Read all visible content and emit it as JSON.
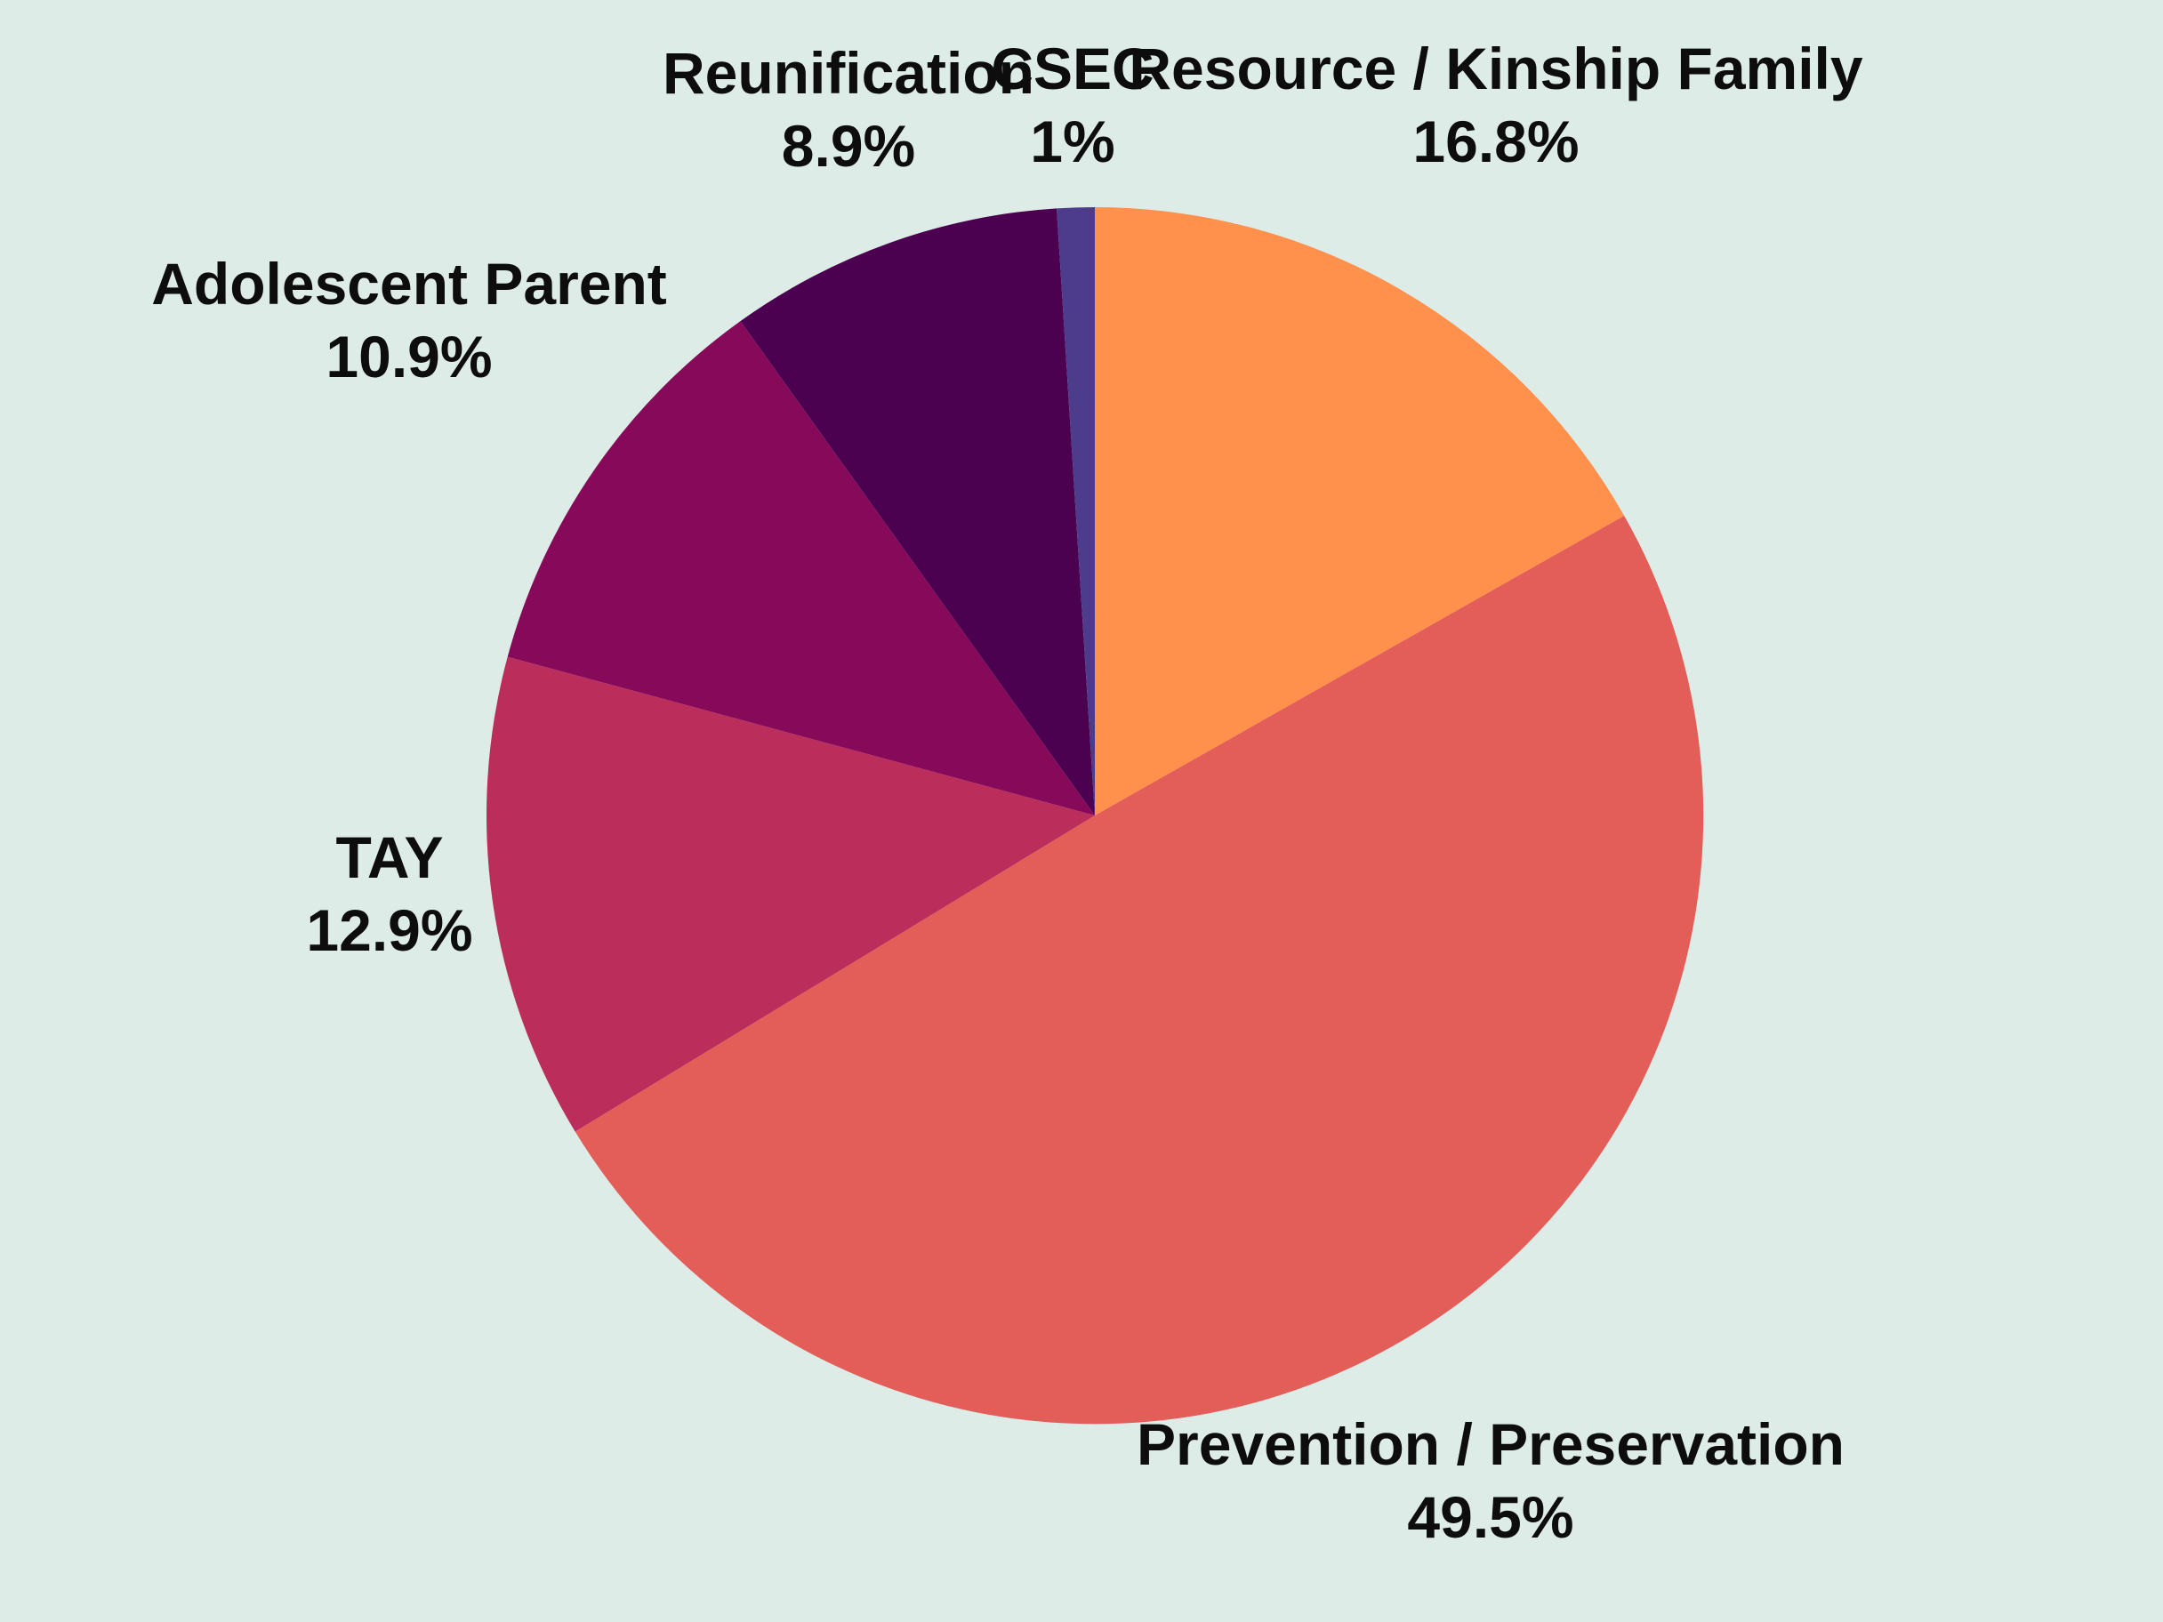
{
  "chart_data": {
    "type": "pie",
    "title": "",
    "start": "12 o'clock",
    "direction": "clockwise",
    "slices": [
      {
        "label": "Resource / Kinship Family",
        "value": 16.8,
        "value_label": "16.8%",
        "color": "#ff914d"
      },
      {
        "label": "Prevention / Preservation",
        "value": 49.5,
        "value_label": "49.5%",
        "color": "#e35d59"
      },
      {
        "label": "TAY",
        "value": 12.9,
        "value_label": "12.9%",
        "color": "#bb2e5b"
      },
      {
        "label": "Adolescent Parent",
        "value": 10.9,
        "value_label": "10.9%",
        "color": "#870959"
      },
      {
        "label": "Reunification",
        "value": 8.9,
        "value_label": "8.9%",
        "color": "#4c0050"
      },
      {
        "label": "CSEC",
        "value": 1,
        "value_label": "1%",
        "color": "#4d3c8c"
      }
    ]
  }
}
